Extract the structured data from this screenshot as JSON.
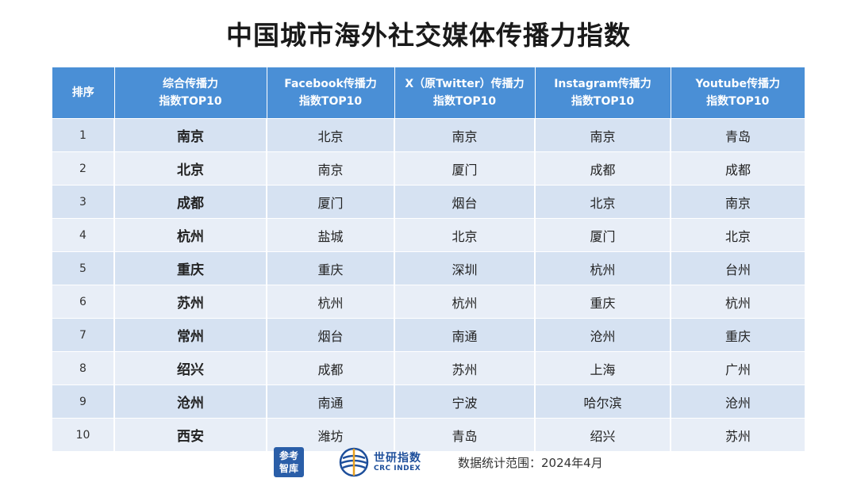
{
  "title": "中国城市海外社交媒体传播力指数",
  "table": {
    "headers": [
      {
        "line1": "排序",
        "line2": ""
      },
      {
        "line1": "综合传播力",
        "line2": "指数TOP10"
      },
      {
        "line1": "Facebook传播力",
        "line2": "指数TOP10"
      },
      {
        "line1": "X（原Twitter）传播力",
        "line2": "指数TOP10"
      },
      {
        "line1": "Instagram传播力",
        "line2": "指数TOP10"
      },
      {
        "line1": "Youtube传播力",
        "line2": "指数TOP10"
      }
    ],
    "rows": [
      [
        "1",
        "南京",
        "北京",
        "南京",
        "南京",
        "青岛"
      ],
      [
        "2",
        "北京",
        "南京",
        "厦门",
        "成都",
        "成都"
      ],
      [
        "3",
        "成都",
        "厦门",
        "烟台",
        "北京",
        "南京"
      ],
      [
        "4",
        "杭州",
        "盐城",
        "北京",
        "厦门",
        "北京"
      ],
      [
        "5",
        "重庆",
        "重庆",
        "深圳",
        "杭州",
        "台州"
      ],
      [
        "6",
        "苏州",
        "杭州",
        "杭州",
        "重庆",
        "杭州"
      ],
      [
        "7",
        "常州",
        "烟台",
        "南通",
        "沧州",
        "重庆"
      ],
      [
        "8",
        "绍兴",
        "成都",
        "苏州",
        "上海",
        "广州"
      ],
      [
        "9",
        "沧州",
        "南通",
        "宁波",
        "哈尔滨",
        "沧州"
      ],
      [
        "10",
        "西安",
        "潍坊",
        "青岛",
        "绍兴",
        "苏州"
      ]
    ]
  },
  "footer": {
    "logo1_line1": "参考",
    "logo1_line2": "智库",
    "logo2_cn": "世研指数",
    "logo2_en": "CRC INDEX",
    "range": "数据统计范围：2024年4月"
  },
  "colors": {
    "header_bg": "#4a8fd6",
    "row_odd": "#d6e2f2",
    "row_even": "#e8eef7"
  }
}
